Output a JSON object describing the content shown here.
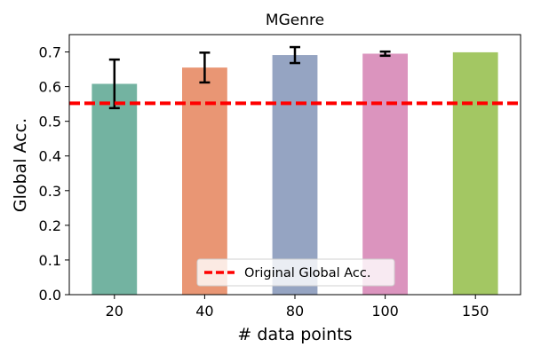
{
  "chart_data": {
    "type": "bar",
    "title": "MGenre",
    "xlabel": "# data points",
    "ylabel": "Global Acc.",
    "categories": [
      "20",
      "40",
      "80",
      "100",
      "150"
    ],
    "values": [
      0.608,
      0.655,
      0.691,
      0.695,
      0.699
    ],
    "errors": [
      0.07,
      0.043,
      0.023,
      0.006,
      0.0
    ],
    "bar_colors": [
      "#73b3a1",
      "#e99674",
      "#95a4c2",
      "#db94be",
      "#a3c763"
    ],
    "ylim": [
      0,
      0.75
    ],
    "yticks": [
      0.0,
      0.1,
      0.2,
      0.3,
      0.4,
      0.5,
      0.6,
      0.7
    ],
    "ytick_labels": [
      "0.0",
      "0.1",
      "0.2",
      "0.3",
      "0.4",
      "0.5",
      "0.6",
      "0.7"
    ],
    "reference_line": {
      "value": 0.552,
      "label": "Original Global Acc.",
      "color": "#ff0000",
      "style": "dashed"
    },
    "grid": false,
    "legend_position": "lower-center"
  }
}
